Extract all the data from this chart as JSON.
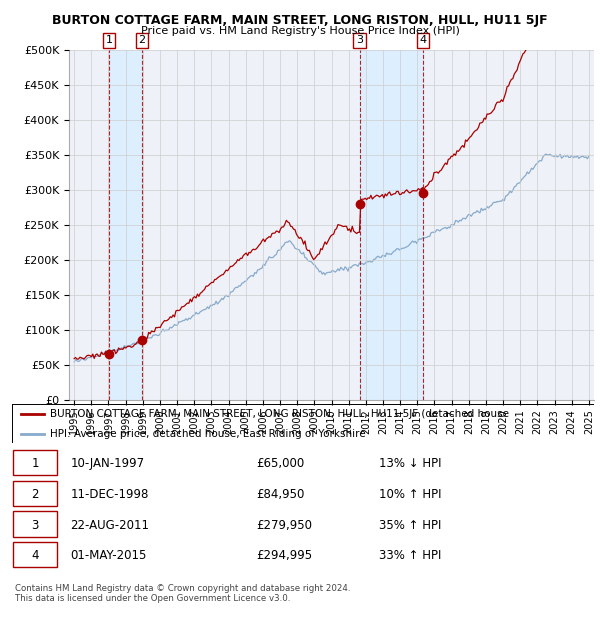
{
  "title": "BURTON COTTAGE FARM, MAIN STREET, LONG RISTON, HULL, HU11 5JF",
  "subtitle": "Price paid vs. HM Land Registry's House Price Index (HPI)",
  "ylim": [
    0,
    500000
  ],
  "yticks": [
    0,
    50000,
    100000,
    150000,
    200000,
    250000,
    300000,
    350000,
    400000,
    450000,
    500000
  ],
  "ytick_labels": [
    "£0",
    "£50K",
    "£100K",
    "£150K",
    "£200K",
    "£250K",
    "£300K",
    "£350K",
    "£400K",
    "£450K",
    "£500K"
  ],
  "xlim_start": 1994.7,
  "xlim_end": 2025.3,
  "transactions": [
    {
      "num": 1,
      "date": "10-JAN-1997",
      "price": 65000,
      "year": 1997.03,
      "pct": "13%",
      "dir": "↓"
    },
    {
      "num": 2,
      "date": "11-DEC-1998",
      "price": 84950,
      "year": 1998.95,
      "pct": "10%",
      "dir": "↑"
    },
    {
      "num": 3,
      "date": "22-AUG-2011",
      "price": 279950,
      "year": 2011.64,
      "pct": "35%",
      "dir": "↑"
    },
    {
      "num": 4,
      "date": "01-MAY-2015",
      "price": 294995,
      "year": 2015.33,
      "pct": "33%",
      "dir": "↑"
    }
  ],
  "legend_line1": "BURTON COTTAGE FARM, MAIN STREET, LONG RISTON, HULL, HU11 5JF (detached house",
  "legend_line2": "HPI: Average price, detached house, East Riding of Yorkshire",
  "footer": "Contains HM Land Registry data © Crown copyright and database right 2024.\nThis data is licensed under the Open Government Licence v3.0.",
  "red_color": "#aa0000",
  "blue_color": "#88aacc",
  "shade_color": "#ddeeff",
  "bg_color": "#ffffff",
  "chart_bg": "#eef2f8",
  "grid_color": "#cccccc"
}
